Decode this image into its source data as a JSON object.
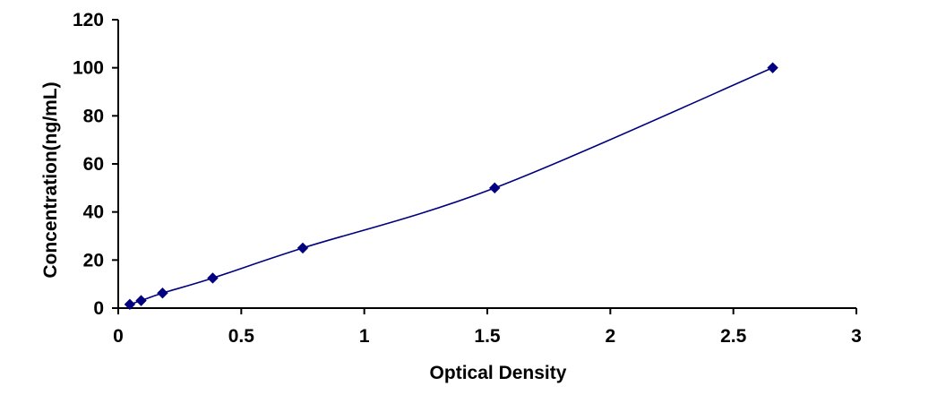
{
  "chart_data": {
    "type": "line",
    "title": "",
    "xlabel": "Optical Density",
    "ylabel": "Concentration(ng/mL)",
    "xlim": [
      0,
      3
    ],
    "ylim": [
      0,
      120
    ],
    "x_ticks": [
      "0",
      "0.5",
      "1",
      "1.5",
      "2",
      "2.5",
      "3"
    ],
    "y_ticks": [
      "0",
      "20",
      "40",
      "60",
      "80",
      "100",
      "120"
    ],
    "grid": false,
    "legend": "none",
    "series": [
      {
        "color": "#000080",
        "marker": "diamond",
        "smooth": true,
        "x": [
          0.047,
          0.093,
          0.18,
          0.384,
          0.75,
          1.53,
          2.66
        ],
        "y": [
          1.56,
          3.12,
          6.25,
          12.5,
          25,
          50,
          100
        ]
      }
    ]
  }
}
